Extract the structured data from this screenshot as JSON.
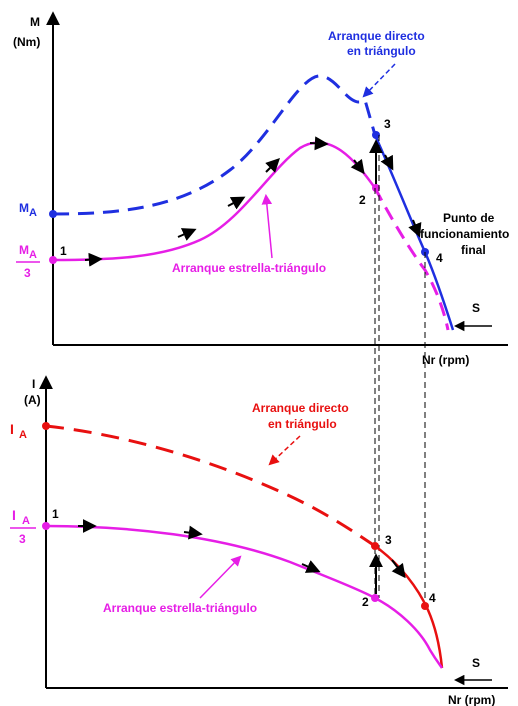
{
  "colors": {
    "blue": "#1f2fe0",
    "magenta": "#e61ee6",
    "red": "#e81010",
    "black": "#000000"
  },
  "torque_chart": {
    "y_axis_label_1": "M",
    "y_axis_label_2": "(Nm)",
    "x_axis_label": "Nr (rpm)",
    "ma_label": "M",
    "ma_sub": "A",
    "ma3_label": "M",
    "ma3_sub": "A",
    "ma3_den": "3",
    "direct_label_1": "Arranque directo",
    "direct_label_2": "en triángulo",
    "star_delta_label": "Arranque estrella-triángulo",
    "final_point_1": "Punto de",
    "final_point_2": "funcionamiento",
    "final_point_3": "final",
    "slip_label": "S",
    "points": {
      "p1": "1",
      "p2": "2",
      "p3": "3",
      "p4": "4"
    }
  },
  "current_chart": {
    "y_axis_label_1": "I",
    "y_axis_label_2": "(A)",
    "x_axis_label": "Nr (rpm)",
    "ia_label": "I",
    "ia_sub": "A",
    "ia3_label": "I",
    "ia3_sub": "A",
    "ia3_den": "3",
    "direct_label_1": "Arranque directo",
    "direct_label_2": "en triángulo",
    "star_delta_label": "Arranque estrella-triángulo",
    "slip_label": "S",
    "points": {
      "p1": "1",
      "p2": "2",
      "p3": "3",
      "p4": "4"
    }
  }
}
